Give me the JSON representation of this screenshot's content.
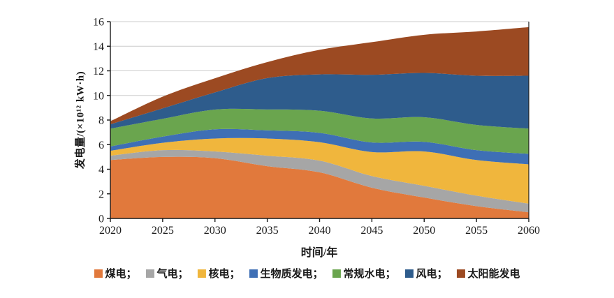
{
  "axes": {
    "y_label": "发电量/(×10¹² kW·h)",
    "x_label": "时间/年",
    "y_ticks": [
      0,
      2,
      4,
      6,
      8,
      10,
      12,
      14,
      16
    ],
    "x_ticks": [
      2020,
      2025,
      2030,
      2035,
      2040,
      2045,
      2050,
      2055,
      2060
    ]
  },
  "chart_data": {
    "type": "area",
    "stacked": true,
    "xlabel": "时间/年",
    "ylabel": "发电量/(×10¹² kW·h)",
    "x": [
      2020,
      2025,
      2030,
      2035,
      2040,
      2045,
      2050,
      2055,
      2060
    ],
    "ylim": [
      0,
      16
    ],
    "xlim": [
      2020,
      2060
    ],
    "grid": "horizontal",
    "legend_position": "bottom",
    "series": [
      {
        "id": "coal",
        "name": "煤电",
        "color": "#E1793C",
        "values": [
          4.75,
          5.0,
          4.9,
          4.25,
          3.75,
          2.5,
          1.7,
          1.0,
          0.5
        ]
      },
      {
        "id": "gas",
        "name": "气电",
        "color": "#A6A6A6",
        "values": [
          0.35,
          0.55,
          0.55,
          0.85,
          0.95,
          0.95,
          0.95,
          0.85,
          0.7
        ]
      },
      {
        "id": "nuclear",
        "name": "核电",
        "color": "#F0B63D",
        "values": [
          0.4,
          0.6,
          1.05,
          1.4,
          1.5,
          1.95,
          2.8,
          2.9,
          3.2
        ]
      },
      {
        "id": "biomass",
        "name": "生物质发电",
        "color": "#3E6FB5",
        "values": [
          0.35,
          0.5,
          0.75,
          0.66,
          0.76,
          0.78,
          0.78,
          0.8,
          0.85
        ]
      },
      {
        "id": "hydro",
        "name": "常规水电",
        "color": "#6AA54E",
        "values": [
          1.45,
          1.45,
          1.6,
          1.7,
          1.8,
          1.95,
          2.0,
          2.05,
          2.05
        ]
      },
      {
        "id": "wind",
        "name": "风电",
        "color": "#2E5C8C",
        "values": [
          0.35,
          0.85,
          1.4,
          2.55,
          2.95,
          3.55,
          3.6,
          4.0,
          4.3
        ]
      },
      {
        "id": "solar",
        "name": "太阳能发电",
        "color": "#9C4A22",
        "values": [
          0.25,
          0.95,
          1.15,
          1.3,
          2.0,
          2.65,
          3.1,
          3.6,
          3.95
        ]
      }
    ]
  },
  "legend": {
    "items": [
      {
        "series": "coal",
        "label": "煤电；"
      },
      {
        "series": "gas",
        "label": "气电；"
      },
      {
        "series": "nuclear",
        "label": "核电；"
      },
      {
        "series": "biomass",
        "label": "生物质发电；"
      },
      {
        "series": "hydro",
        "label": "常规水电；"
      },
      {
        "series": "wind",
        "label": "风电；"
      },
      {
        "series": "solar",
        "label": "太阳能发电"
      }
    ]
  },
  "style": {
    "axis_color": "#1a1a1a",
    "grid_color": "#cccccc",
    "text_color": "#1a1a1a",
    "background": "#ffffff"
  }
}
